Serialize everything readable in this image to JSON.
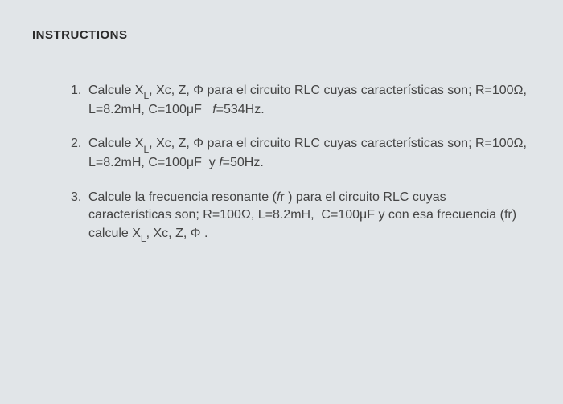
{
  "heading": "INSTRUCTIONS",
  "items": [
    {
      "number": "1.",
      "html": "Calcule X<span class='sub'>L</span>, Xc, Z, Φ para el circuito RLC cuyas características son; R=100Ω, L=8.2mH, C=100μF&nbsp;&nbsp;&nbsp;<span class='italic'>f</span>=534Hz."
    },
    {
      "number": "2.",
      "html": "Calcule X<span class='sub'>L</span>, Xc, Z, Φ para el circuito RLC cuyas características son; R=100Ω, L=8.2mH, C=100μF&nbsp;&nbsp;y <span class='italic'>f</span>=50Hz."
    },
    {
      "number": "3.",
      "html": "Calcule la frecuencia resonante (<span class='italic'>f</span>r ) para el circuito RLC cuyas características son; R=100Ω, L=8.2mH,&nbsp;&nbsp;C=100μF y con esa frecuencia (fr) calcule X<span class='sub'>L</span>, Xc, Z, Φ ."
    }
  ]
}
